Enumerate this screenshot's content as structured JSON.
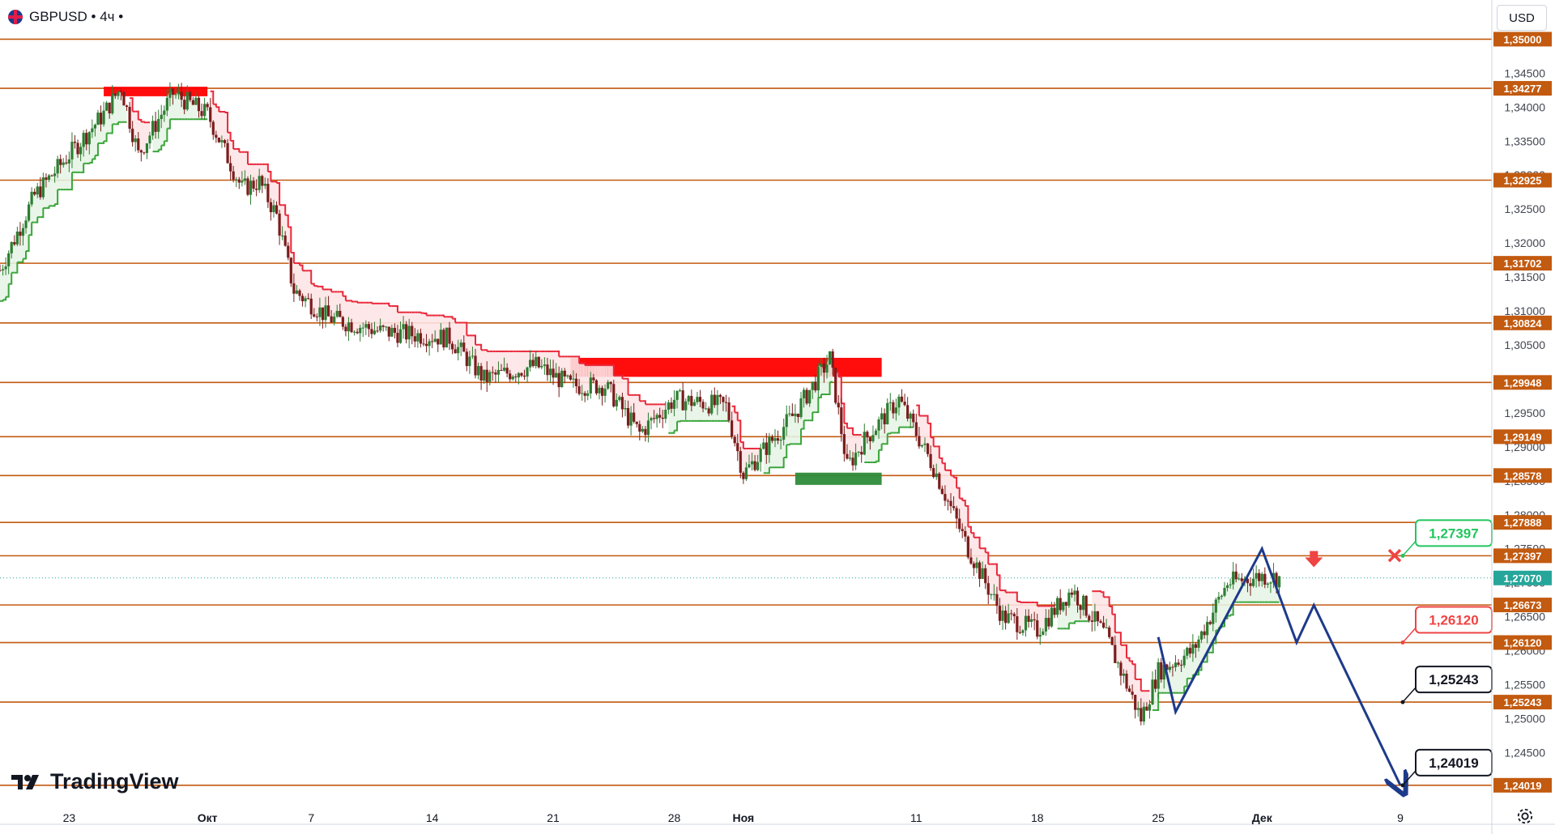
{
  "header": {
    "symbol": "GBPUSD",
    "timeframe": "4ч",
    "title_text": "GBPUSD • 4ч •"
  },
  "currency_button": "USD",
  "brand": "TradingView",
  "colors": {
    "level_line": "#c25a10",
    "level_label_bg": "#c25a10",
    "bull": "#2e7d32",
    "bear": "#7a1d1d",
    "supertrend_up": "#3aa53a",
    "supertrend_down": "#e8283a",
    "fill_up": "#e6f4e6",
    "fill_down": "#fde4e6",
    "zone_red": "#ff0000",
    "zone_green": "#2e8b3a",
    "projection": "#1e3a8a",
    "price_label_green": "#22c55e",
    "price_label_red": "#ef4444"
  },
  "chart_data": {
    "type": "candlestick",
    "symbol": "GBPUSD",
    "timeframe": "4ч",
    "y_axis_ticks": [
      "1,34500",
      "1,34000",
      "1,33500",
      "1,33000",
      "1,32500",
      "1,32000",
      "1,31500",
      "1,31000",
      "1,30500",
      "1,30000",
      "1,29500",
      "1,29000",
      "1,28500",
      "1,28000",
      "1,27500",
      "1,27000",
      "1,26500",
      "1,26000",
      "1,25500",
      "1,25000",
      "1,24500"
    ],
    "x_axis_ticks": [
      "23",
      "Окт",
      "7",
      "14",
      "21",
      "28",
      "Ноя",
      "11",
      "18",
      "25",
      "Дек",
      "9"
    ],
    "horizontal_levels": [
      "1,35000",
      "1,34277",
      "1,32925",
      "1,31702",
      "1,30824",
      "1,29948",
      "1,29149",
      "1,28578",
      "1,27888",
      "1,27397",
      "1,26673",
      "1,26120",
      "1,25243",
      "1,24019"
    ],
    "current_price": "1,27070",
    "annotation_labels": [
      {
        "text": "1,27397",
        "color": "green"
      },
      {
        "text": "1,26120",
        "color": "red"
      },
      {
        "text": "1,25243",
        "color": "black"
      },
      {
        "text": "1,24019",
        "color": "black"
      }
    ],
    "ylim": [
      1.2385,
      1.351
    ],
    "price_path": [
      {
        "date": "2024-09-19",
        "price": 1.316
      },
      {
        "date": "2024-09-21",
        "price": 1.327
      },
      {
        "date": "2024-09-23",
        "price": 1.333
      },
      {
        "date": "2024-09-25",
        "price": 1.339
      },
      {
        "date": "2024-09-26",
        "price": 1.343
      },
      {
        "date": "2024-09-27",
        "price": 1.333
      },
      {
        "date": "2024-09-29",
        "price": 1.342
      },
      {
        "date": "2024-10-01",
        "price": 1.339
      },
      {
        "date": "2024-10-03",
        "price": 1.328
      },
      {
        "date": "2024-10-04",
        "price": 1.329
      },
      {
        "date": "2024-10-05",
        "price": 1.324
      },
      {
        "date": "2024-10-06",
        "price": 1.313
      },
      {
        "date": "2024-10-08",
        "price": 1.309
      },
      {
        "date": "2024-10-11",
        "price": 1.307
      },
      {
        "date": "2024-10-15",
        "price": 1.306
      },
      {
        "date": "2024-10-17",
        "price": 1.3
      },
      {
        "date": "2024-10-20",
        "price": 1.302
      },
      {
        "date": "2024-10-22",
        "price": 1.299
      },
      {
        "date": "2024-10-24",
        "price": 1.299
      },
      {
        "date": "2024-10-26",
        "price": 1.292
      },
      {
        "date": "2024-10-28",
        "price": 1.297
      },
      {
        "date": "2024-10-31",
        "price": 1.296
      },
      {
        "date": "2024-11-01",
        "price": 1.286
      },
      {
        "date": "2024-11-04",
        "price": 1.295
      },
      {
        "date": "2024-11-06",
        "price": 1.303
      },
      {
        "date": "2024-11-07",
        "price": 1.287
      },
      {
        "date": "2024-11-08",
        "price": 1.291
      },
      {
        "date": "2024-11-10",
        "price": 1.297
      },
      {
        "date": "2024-11-12",
        "price": 1.287
      },
      {
        "date": "2024-11-14",
        "price": 1.275
      },
      {
        "date": "2024-11-16",
        "price": 1.265
      },
      {
        "date": "2024-11-18",
        "price": 1.263
      },
      {
        "date": "2024-11-20",
        "price": 1.269
      },
      {
        "date": "2024-11-22",
        "price": 1.262
      },
      {
        "date": "2024-11-24",
        "price": 1.25
      },
      {
        "date": "2024-11-25",
        "price": 1.257
      },
      {
        "date": "2024-11-27",
        "price": 1.26
      },
      {
        "date": "2024-11-29",
        "price": 1.27
      },
      {
        "date": "2024-12-01",
        "price": 1.271
      },
      {
        "date": "2024-12-02",
        "price": 1.2707
      }
    ],
    "supply_zones": [
      {
        "from": "2024-09-25",
        "to": "2024-10-01",
        "low": 1.3416,
        "high": 1.343
      },
      {
        "from": "2024-10-22",
        "to": "2024-11-09",
        "low": 1.3003,
        "high": 1.3031
      }
    ],
    "demand_zones": [
      {
        "from": "2024-11-04",
        "to": "2024-11-09",
        "low": 1.2844,
        "high": 1.2862
      }
    ],
    "projection_path": [
      {
        "date": "2024-11-25",
        "price": 1.262
      },
      {
        "date": "2024-11-26",
        "price": 1.251
      },
      {
        "date": "2024-12-01",
        "price": 1.275
      },
      {
        "date": "2024-12-03",
        "price": 1.2612
      },
      {
        "date": "2024-12-04",
        "price": 1.2667
      },
      {
        "date": "2024-12-09",
        "price": 1.2402
      }
    ],
    "grid": false,
    "legend": "none"
  }
}
